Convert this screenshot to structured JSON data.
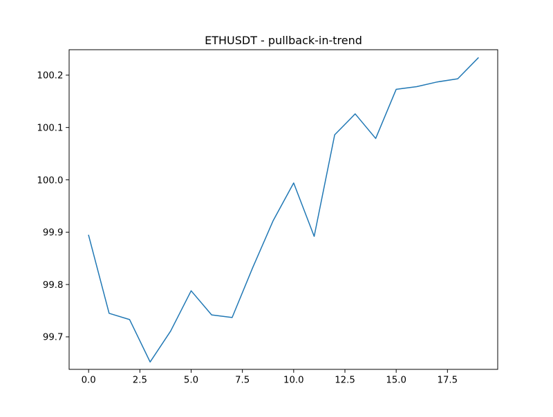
{
  "chart_data": {
    "type": "line",
    "title": "ETHUSDT - pullback-in-trend",
    "xlabel": "",
    "ylabel": "",
    "xlim": [
      -0.95,
      19.95
    ],
    "ylim": [
      99.6379,
      100.2486
    ],
    "x_ticks": [
      0.0,
      2.5,
      5.0,
      7.5,
      10.0,
      12.5,
      15.0,
      17.5
    ],
    "x_tick_labels": [
      "0.0",
      "2.5",
      "5.0",
      "7.5",
      "10.0",
      "12.5",
      "15.0",
      "17.5"
    ],
    "y_ticks": [
      99.7,
      99.8,
      99.9,
      100.0,
      100.1,
      100.2
    ],
    "y_tick_labels": [
      "99.7",
      "99.8",
      "99.9",
      "100.0",
      "100.1",
      "100.2"
    ],
    "grid": false,
    "series": [
      {
        "color": "#1f77b4",
        "x": [
          0,
          1,
          2,
          3,
          4,
          5,
          6,
          7,
          8,
          9,
          10,
          11,
          12,
          13,
          14,
          15,
          16,
          17,
          18,
          19
        ],
        "y": [
          99.894,
          99.745,
          99.733,
          99.652,
          99.711,
          99.788,
          99.742,
          99.737,
          99.832,
          99.922,
          99.994,
          99.892,
          100.086,
          100.126,
          100.079,
          100.173,
          100.178,
          100.187,
          100.193,
          100.233
        ]
      }
    ]
  }
}
